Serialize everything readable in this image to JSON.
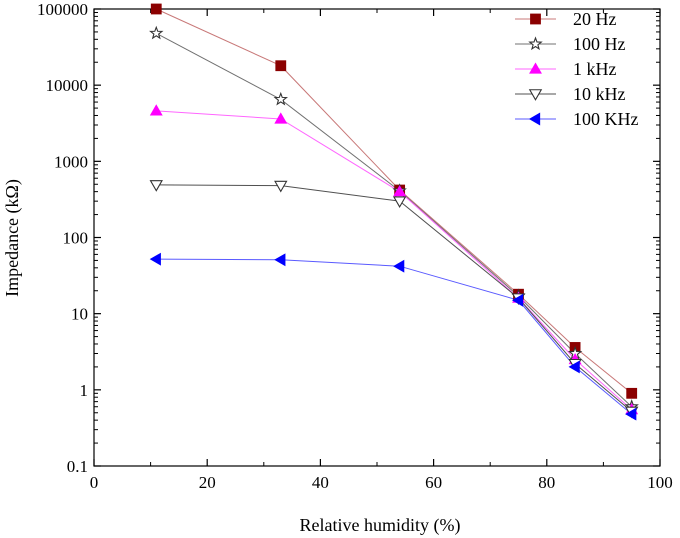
{
  "chart_data": {
    "type": "line",
    "title": "",
    "xlabel": "Relative humidity (%)",
    "ylabel": "Impedance (kΩ)",
    "xlim": [
      0,
      100
    ],
    "ylim": [
      0.1,
      100000
    ],
    "y_scale": "log",
    "x_ticks": [
      "0",
      "20",
      "40",
      "60",
      "80",
      "100"
    ],
    "y_ticks": [
      "0.1",
      "1",
      "10",
      "100",
      "1000",
      "10000",
      "100000"
    ],
    "grid": false,
    "legend_position": "top-right",
    "x": [
      11,
      33,
      54,
      75,
      85,
      95
    ],
    "series": [
      {
        "name": "20 Hz",
        "marker": "square",
        "color": "#8b0000",
        "line_color": "#c87878",
        "values": [
          100000,
          18000,
          420,
          18,
          3.6,
          0.9
        ]
      },
      {
        "name": "100 Hz",
        "marker": "star",
        "color": "#333333",
        "line_color": "#707070",
        "values": [
          48000,
          6500,
          410,
          17,
          3.0,
          0.6
        ]
      },
      {
        "name": "1 kHz",
        "marker": "triangle-up",
        "color": "#ff00ff",
        "line_color": "#ff66ff",
        "values": [
          4600,
          3600,
          400,
          16,
          2.5,
          0.55
        ]
      },
      {
        "name": "10 kHz",
        "marker": "triangle-down",
        "color": "#333333",
        "line_color": "#505050",
        "values": [
          490,
          480,
          300,
          16,
          2.2,
          0.52
        ]
      },
      {
        "name": "100 KHz",
        "marker": "triangle-left",
        "color": "#0000ff",
        "line_color": "#5a5aff",
        "values": [
          52,
          51,
          42,
          15,
          2.0,
          0.48
        ]
      }
    ]
  }
}
